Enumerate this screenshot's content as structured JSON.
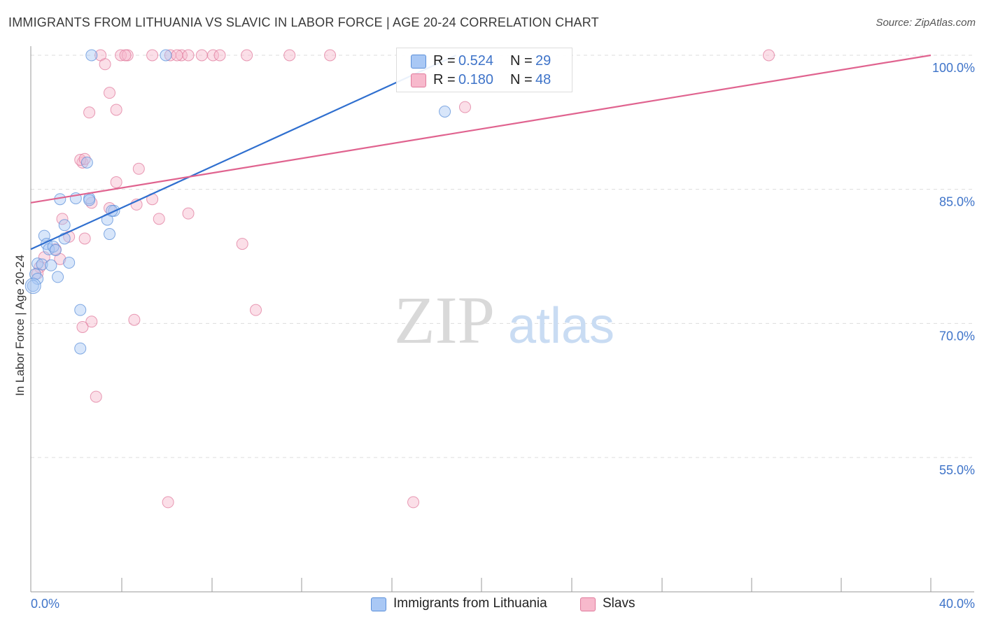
{
  "title": "IMMIGRANTS FROM LITHUANIA VS SLAVIC IN LABOR FORCE | AGE 20-24 CORRELATION CHART",
  "source": "Source: ZipAtlas.com",
  "watermark": {
    "zip": "ZIP",
    "atlas": "atlas"
  },
  "legend_top": [
    {
      "r_label": "R =",
      "r_value": "0.524",
      "n_label": "N =",
      "n_value": "29"
    },
    {
      "r_label": "R =",
      "r_value": "0.180",
      "n_label": "N =",
      "n_value": "48"
    }
  ],
  "legend_bottom": [
    {
      "label": "Immigrants from Lithuania"
    },
    {
      "label": "Slavs"
    }
  ],
  "colors": {
    "blue_fill": "#a9c8f5",
    "blue_stroke": "#5b8fd9",
    "blue_line": "#2f6fcf",
    "pink_fill": "#f7b9cc",
    "pink_stroke": "#e07a9c",
    "pink_line": "#e0638f",
    "axis_label": "#3f74c9",
    "grid": "#dddddd"
  },
  "chart_data": {
    "type": "scatter",
    "title": "IMMIGRANTS FROM LITHUANIA VS SLAVIC IN LABOR FORCE | AGE 20-24 CORRELATION CHART",
    "xlabel": "",
    "ylabel": "In Labor Force | Age 20-24",
    "xlim": [
      0,
      40
    ],
    "ylim": [
      40,
      101
    ],
    "x_tick_labels": [
      "0.0%",
      "40.0%"
    ],
    "y_ticks": [
      55,
      70,
      85,
      100
    ],
    "y_tick_labels": [
      "55.0%",
      "70.0%",
      "85.0%",
      "100.0%"
    ],
    "grid": true,
    "legend": "top-center and bottom",
    "series": [
      {
        "name": "Immigrants from Lithuania",
        "color": "#a9c8f5",
        "r": 0.524,
        "n": 29,
        "trend": {
          "x": [
            0,
            18.9
          ],
          "y": [
            78.3,
            100
          ]
        },
        "points": [
          [
            2.7,
            100
          ],
          [
            6.0,
            100
          ],
          [
            18.4,
            93.7
          ],
          [
            2.5,
            88.0
          ],
          [
            2.0,
            84.0
          ],
          [
            2.6,
            84.0
          ],
          [
            3.7,
            82.6
          ],
          [
            3.4,
            81.6
          ],
          [
            1.5,
            81.0
          ],
          [
            0.6,
            79.8
          ],
          [
            0.7,
            78.9
          ],
          [
            0.8,
            78.3
          ],
          [
            1.0,
            78.6
          ],
          [
            1.1,
            78.2
          ],
          [
            1.5,
            79.5
          ],
          [
            0.3,
            76.7
          ],
          [
            0.5,
            76.6
          ],
          [
            1.7,
            76.8
          ],
          [
            0.9,
            76.5
          ],
          [
            0.2,
            75.5
          ],
          [
            0.3,
            75.0
          ],
          [
            1.2,
            75.2
          ],
          [
            0.1,
            74.2
          ],
          [
            3.6,
            82.6
          ],
          [
            3.5,
            80.0
          ],
          [
            2.2,
            71.5
          ],
          [
            2.2,
            67.2
          ],
          [
            1.3,
            83.9
          ],
          [
            2.6,
            83.8
          ]
        ]
      },
      {
        "name": "Slavs",
        "color": "#f7b9cc",
        "r": 0.18,
        "n": 48,
        "trend": {
          "x": [
            0,
            40
          ],
          "y": [
            83.5,
            100
          ]
        },
        "points": [
          [
            3.1,
            100
          ],
          [
            4.0,
            100
          ],
          [
            4.3,
            100
          ],
          [
            5.4,
            100
          ],
          [
            6.2,
            100
          ],
          [
            6.7,
            100
          ],
          [
            7.0,
            100
          ],
          [
            7.6,
            100
          ],
          [
            8.1,
            100
          ],
          [
            8.4,
            100
          ],
          [
            9.6,
            100
          ],
          [
            11.5,
            100
          ],
          [
            13.3,
            100
          ],
          [
            32.8,
            100
          ],
          [
            4.2,
            100
          ],
          [
            6.5,
            100
          ],
          [
            3.3,
            99.0
          ],
          [
            3.5,
            95.8
          ],
          [
            2.6,
            93.6
          ],
          [
            3.8,
            93.9
          ],
          [
            19.3,
            94.2
          ],
          [
            2.3,
            88.0
          ],
          [
            2.2,
            88.3
          ],
          [
            2.4,
            88.4
          ],
          [
            4.8,
            87.3
          ],
          [
            3.8,
            85.8
          ],
          [
            4.7,
            83.3
          ],
          [
            5.4,
            83.9
          ],
          [
            3.5,
            82.9
          ],
          [
            7.0,
            82.3
          ],
          [
            2.7,
            83.5
          ],
          [
            5.7,
            81.7
          ],
          [
            1.4,
            81.7
          ],
          [
            1.7,
            79.7
          ],
          [
            2.4,
            79.5
          ],
          [
            9.4,
            78.9
          ],
          [
            1.1,
            78.3
          ],
          [
            0.6,
            77.4
          ],
          [
            0.4,
            76.3
          ],
          [
            0.3,
            75.6
          ],
          [
            1.3,
            77.2
          ],
          [
            10.0,
            71.5
          ],
          [
            4.6,
            70.4
          ],
          [
            2.7,
            70.2
          ],
          [
            2.3,
            69.6
          ],
          [
            2.9,
            61.8
          ],
          [
            6.1,
            50.0
          ],
          [
            17.0,
            50.0
          ]
        ]
      }
    ]
  }
}
